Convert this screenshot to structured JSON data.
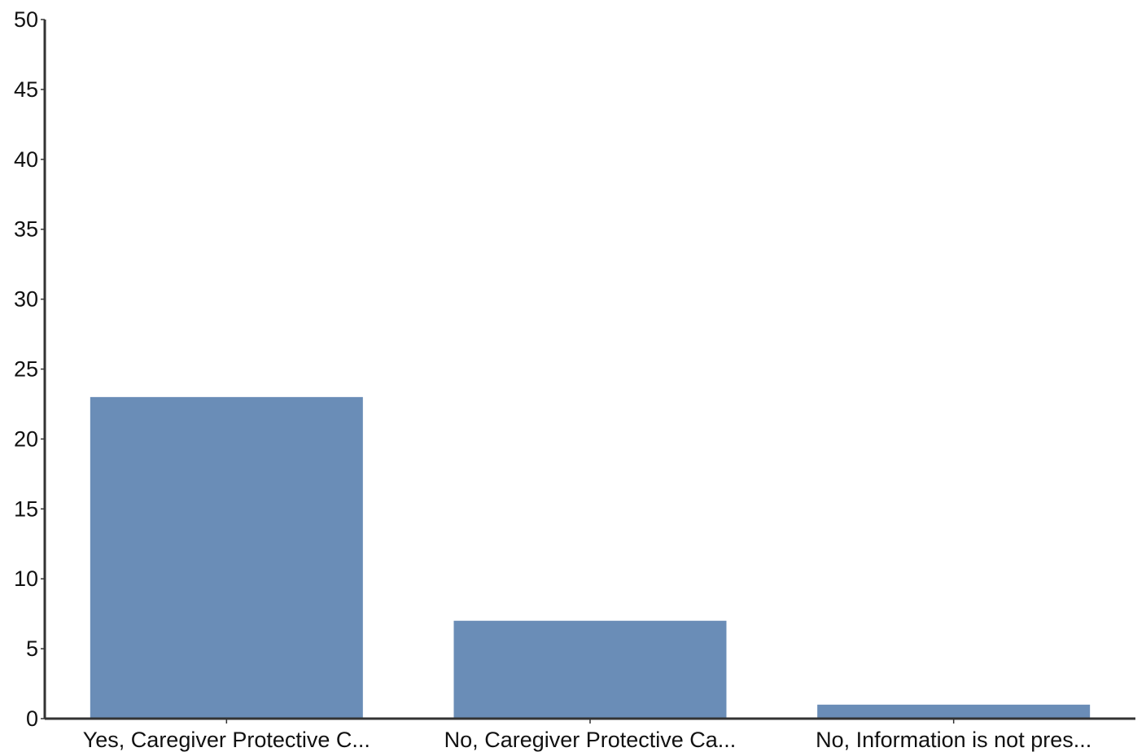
{
  "chart_data": {
    "type": "bar",
    "categories": [
      "Yes, Caregiver Protective C...",
      "No, Caregiver Protective Ca...",
      "No, Information is not pres..."
    ],
    "values": [
      23,
      7,
      1
    ],
    "ylim": [
      0,
      50
    ],
    "yticks": [
      0,
      5,
      10,
      15,
      20,
      25,
      30,
      35,
      40,
      45,
      50
    ],
    "grid": false,
    "bar_color": "#6a8db7",
    "axis_color": "#333333"
  }
}
